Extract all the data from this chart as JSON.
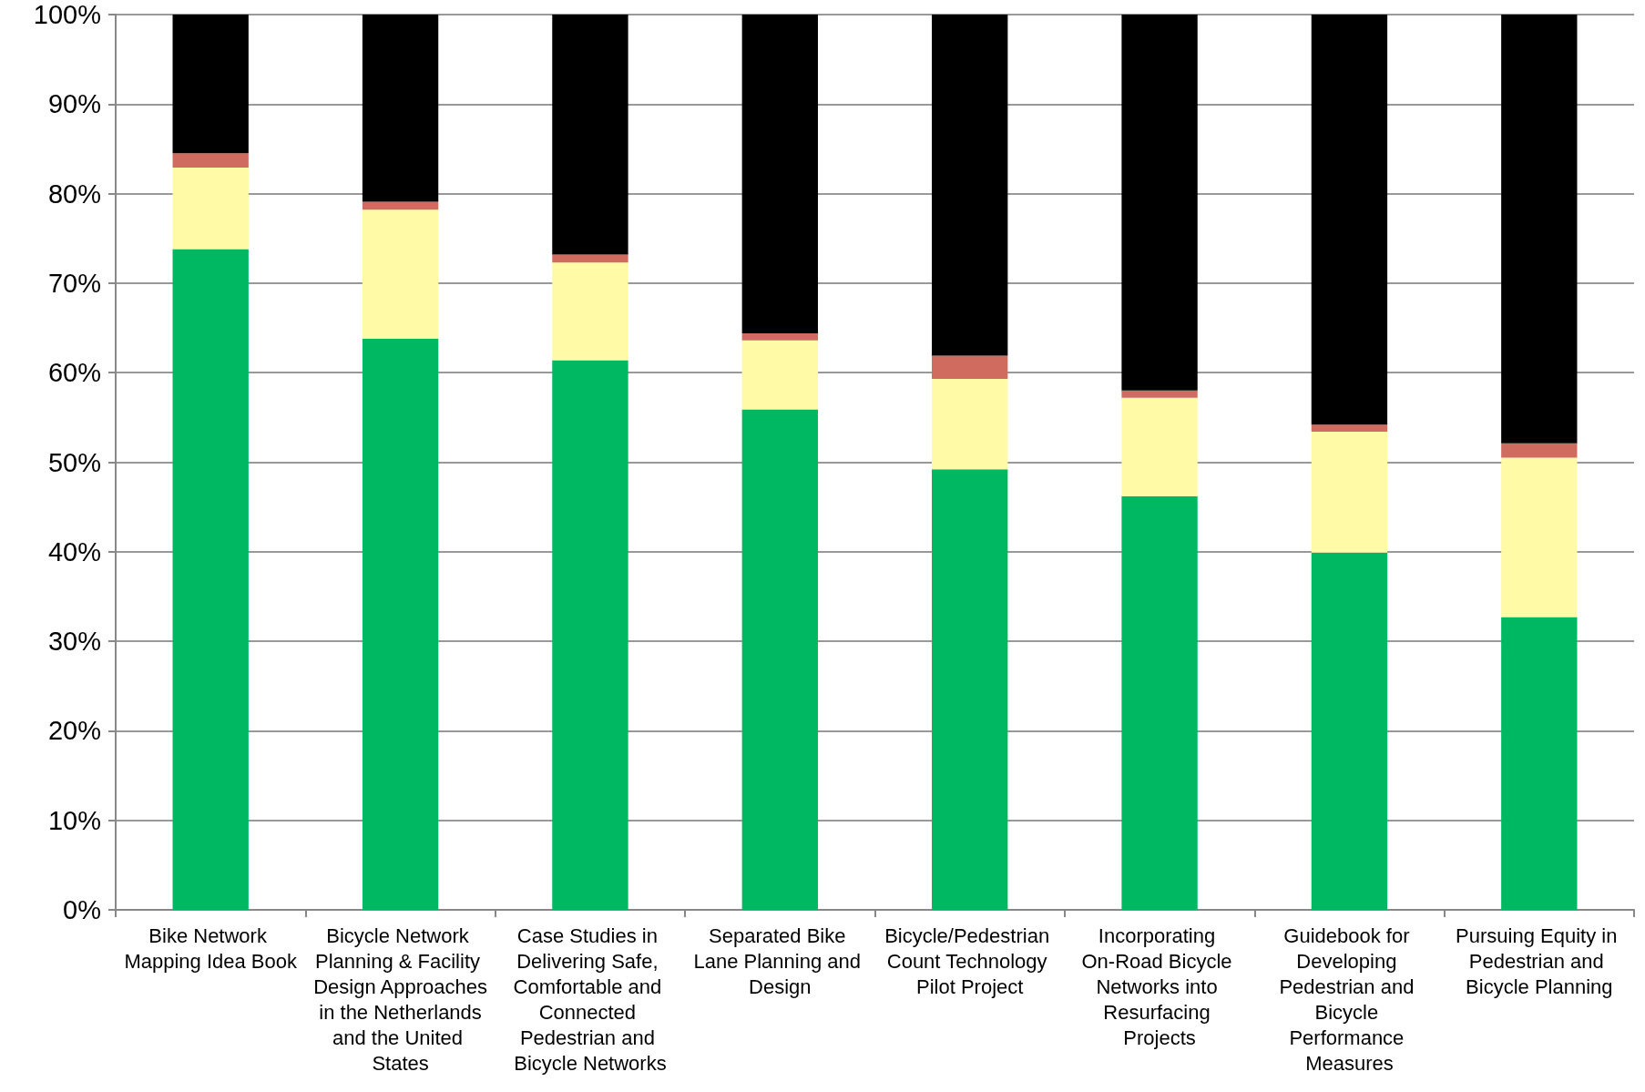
{
  "chart_data": {
    "type": "bar",
    "stacked": true,
    "categories": [
      "Bike Network Mapping Idea Book",
      "Bicycle Network Planning & Facility Design Approaches in the Netherlands and the United States",
      "Case Studies in Delivering Safe, Comfortable and Connected Pedestrian and Bicycle Networks",
      "Separated Bike Lane Planning and Design",
      "Bicycle/Pedestrian Count Technology Pilot Project",
      "Incorporating On-Road Bicycle Networks into Resurfacing Projects",
      "Guidebook for Developing Pedestrian and Bicycle Performance Measures",
      "Pursuing Equity in Pedestrian and Bicycle Planning"
    ],
    "series": [
      {
        "color": "#00b862",
        "values": [
          73.8,
          63.8,
          61.4,
          55.9,
          49.2,
          46.2,
          39.9,
          32.7
        ]
      },
      {
        "color": "#fffaa5",
        "values": [
          9.1,
          14.4,
          10.9,
          7.7,
          10.1,
          11.0,
          13.5,
          17.8
        ]
      },
      {
        "color": "#d06b5f",
        "values": [
          1.6,
          0.9,
          0.9,
          0.8,
          2.6,
          0.8,
          0.8,
          1.6
        ]
      },
      {
        "color": "#000000",
        "values": [
          15.5,
          20.9,
          26.8,
          35.6,
          38.1,
          42.0,
          45.8,
          47.9
        ]
      }
    ],
    "ylim": [
      0,
      100
    ],
    "yticks": [
      {
        "value": 0,
        "label": "0%"
      },
      {
        "value": 10,
        "label": "10%"
      },
      {
        "value": 20,
        "label": "20%"
      },
      {
        "value": 30,
        "label": "30%"
      },
      {
        "value": 40,
        "label": "40%"
      },
      {
        "value": 50,
        "label": "50%"
      },
      {
        "value": 60,
        "label": "60%"
      },
      {
        "value": 70,
        "label": "70%"
      },
      {
        "value": 80,
        "label": "80%"
      },
      {
        "value": 90,
        "label": "90%"
      },
      {
        "value": 100,
        "label": "100%"
      }
    ],
    "grid": "y"
  }
}
